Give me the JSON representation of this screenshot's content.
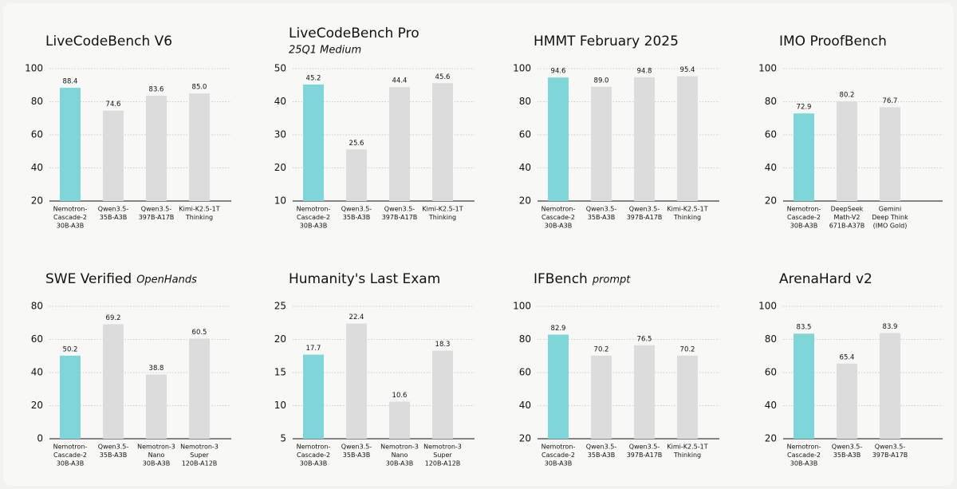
{
  "chart_data": [
    {
      "type": "bar",
      "title": "LiveCodeBench V6",
      "categories": [
        [
          "Nemotron-",
          "Cascade-2",
          "30B-A3B"
        ],
        [
          "Qwen3.5-",
          "35B-A3B"
        ],
        [
          "Qwen3.5-",
          "397B-A17B"
        ],
        [
          "Kimi-K2.5-1T",
          "Thinking"
        ]
      ],
      "values": [
        88.4,
        74.6,
        83.6,
        85.0
      ],
      "value_labels": [
        "88.4",
        "74.6",
        "83.6",
        "85.0"
      ],
      "colors": [
        "#7fd6d9",
        "#dcdcdc",
        "#dcdcdc",
        "#dcdcdc"
      ],
      "ylim": [
        20,
        100
      ],
      "yticks": [
        20,
        40,
        60,
        80,
        100
      ],
      "grid": true
    },
    {
      "type": "bar",
      "title": "LiveCodeBench Pro",
      "subtitle": "25Q1 Medium",
      "categories": [
        [
          "Nemotron-",
          "Cascade-2",
          "30B-A3B"
        ],
        [
          "Qwen3.5-",
          "35B-A3B"
        ],
        [
          "Qwen3.5-",
          "397B-A17B"
        ],
        [
          "Kimi-K2.5-1T",
          "Thinking"
        ]
      ],
      "values": [
        45.2,
        25.6,
        44.4,
        45.6
      ],
      "colors": [
        "#7fd6d9",
        "#dcdcdc",
        "#dcdcdc",
        "#dcdcdc"
      ],
      "ylim": [
        10,
        50
      ],
      "yticks": [
        10,
        20,
        30,
        40,
        50
      ],
      "grid": true
    },
    {
      "type": "bar",
      "title": "HMMT February 2025",
      "categories": [
        [
          "Nemotron-",
          "Cascade-2",
          "30B-A3B"
        ],
        [
          "Qwen3.5-",
          "35B-A3B"
        ],
        [
          "Qwen3.5-",
          "397B-A17B"
        ],
        [
          "Kimi-K2.5-1T",
          "Thinking"
        ]
      ],
      "values": [
        94.6,
        89.0,
        94.8,
        95.4
      ],
      "value_labels": [
        "94.6",
        "89.0",
        "94.8",
        "95.4"
      ],
      "colors": [
        "#7fd6d9",
        "#dcdcdc",
        "#dcdcdc",
        "#dcdcdc"
      ],
      "ylim": [
        20,
        100
      ],
      "yticks": [
        20,
        40,
        60,
        80,
        100
      ],
      "grid": true
    },
    {
      "type": "bar",
      "title": "IMO ProofBench",
      "categories": [
        [
          "Nemotron-",
          "Cascade-2",
          "30B-A3B"
        ],
        [
          "DeepSeek",
          "Math-V2",
          "671B-A37B"
        ],
        [
          "Gemini",
          "Deep Think",
          "(IMO Gold)"
        ]
      ],
      "values": [
        72.9,
        80.2,
        76.7
      ],
      "colors": [
        "#7fd6d9",
        "#dcdcdc",
        "#dcdcdc"
      ],
      "ylim": [
        20,
        100
      ],
      "yticks": [
        20,
        40,
        60,
        80,
        100
      ],
      "grid": true
    },
    {
      "type": "bar",
      "title": "SWE Verified",
      "subtitle": "OpenHands",
      "categories": [
        [
          "Nemotron-",
          "Cascade-2",
          "30B-A3B"
        ],
        [
          "Qwen3.5-",
          "35B-A3B"
        ],
        [
          "Nemotron-3",
          "Nano",
          "30B-A3B"
        ],
        [
          "Nemotron-3",
          "Super",
          "120B-A12B"
        ]
      ],
      "values": [
        50.2,
        69.2,
        38.8,
        60.5
      ],
      "colors": [
        "#7fd6d9",
        "#dcdcdc",
        "#dcdcdc",
        "#dcdcdc"
      ],
      "ylim": [
        0,
        80
      ],
      "yticks": [
        0,
        20,
        40,
        60,
        80
      ],
      "grid": true
    },
    {
      "type": "bar",
      "title": "Humanity's Last Exam",
      "categories": [
        [
          "Nemotron-",
          "Cascade-2",
          "30B-A3B"
        ],
        [
          "Qwen3.5-",
          "35B-A3B"
        ],
        [
          "Nemotron-3",
          "Nano",
          "30B-A3B"
        ],
        [
          "Nemotron-3",
          "Super",
          "120B-A12B"
        ]
      ],
      "values": [
        17.7,
        22.4,
        10.6,
        18.3
      ],
      "colors": [
        "#7fd6d9",
        "#dcdcdc",
        "#dcdcdc",
        "#dcdcdc"
      ],
      "ylim": [
        5,
        25
      ],
      "yticks": [
        5,
        10,
        15,
        20,
        25
      ],
      "grid": true
    },
    {
      "type": "bar",
      "title": "IFBench",
      "subtitle": "prompt",
      "categories": [
        [
          "Nemotron-",
          "Cascade-2",
          "30B-A3B"
        ],
        [
          "Qwen3.5-",
          "35B-A3B"
        ],
        [
          "Qwen3.5-",
          "397B-A17B"
        ],
        [
          "Kimi-K2.5-1T",
          "Thinking"
        ]
      ],
      "values": [
        82.9,
        70.2,
        76.5,
        70.2
      ],
      "colors": [
        "#7fd6d9",
        "#dcdcdc",
        "#dcdcdc",
        "#dcdcdc"
      ],
      "ylim": [
        20,
        100
      ],
      "yticks": [
        20,
        40,
        60,
        80,
        100
      ],
      "grid": true
    },
    {
      "type": "bar",
      "title": "ArenaHard v2",
      "categories": [
        [
          "Nemotron-",
          "Cascade-2",
          "30B-A3B"
        ],
        [
          "Qwen3.5-",
          "35B-A3B"
        ],
        [
          "Qwen3.5-",
          "397B-A17B"
        ]
      ],
      "values": [
        83.5,
        65.4,
        83.9
      ],
      "colors": [
        "#7fd6d9",
        "#dcdcdc",
        "#dcdcdc"
      ],
      "ylim": [
        20,
        100
      ],
      "yticks": [
        20,
        40,
        60,
        80,
        100
      ],
      "grid": true
    }
  ]
}
